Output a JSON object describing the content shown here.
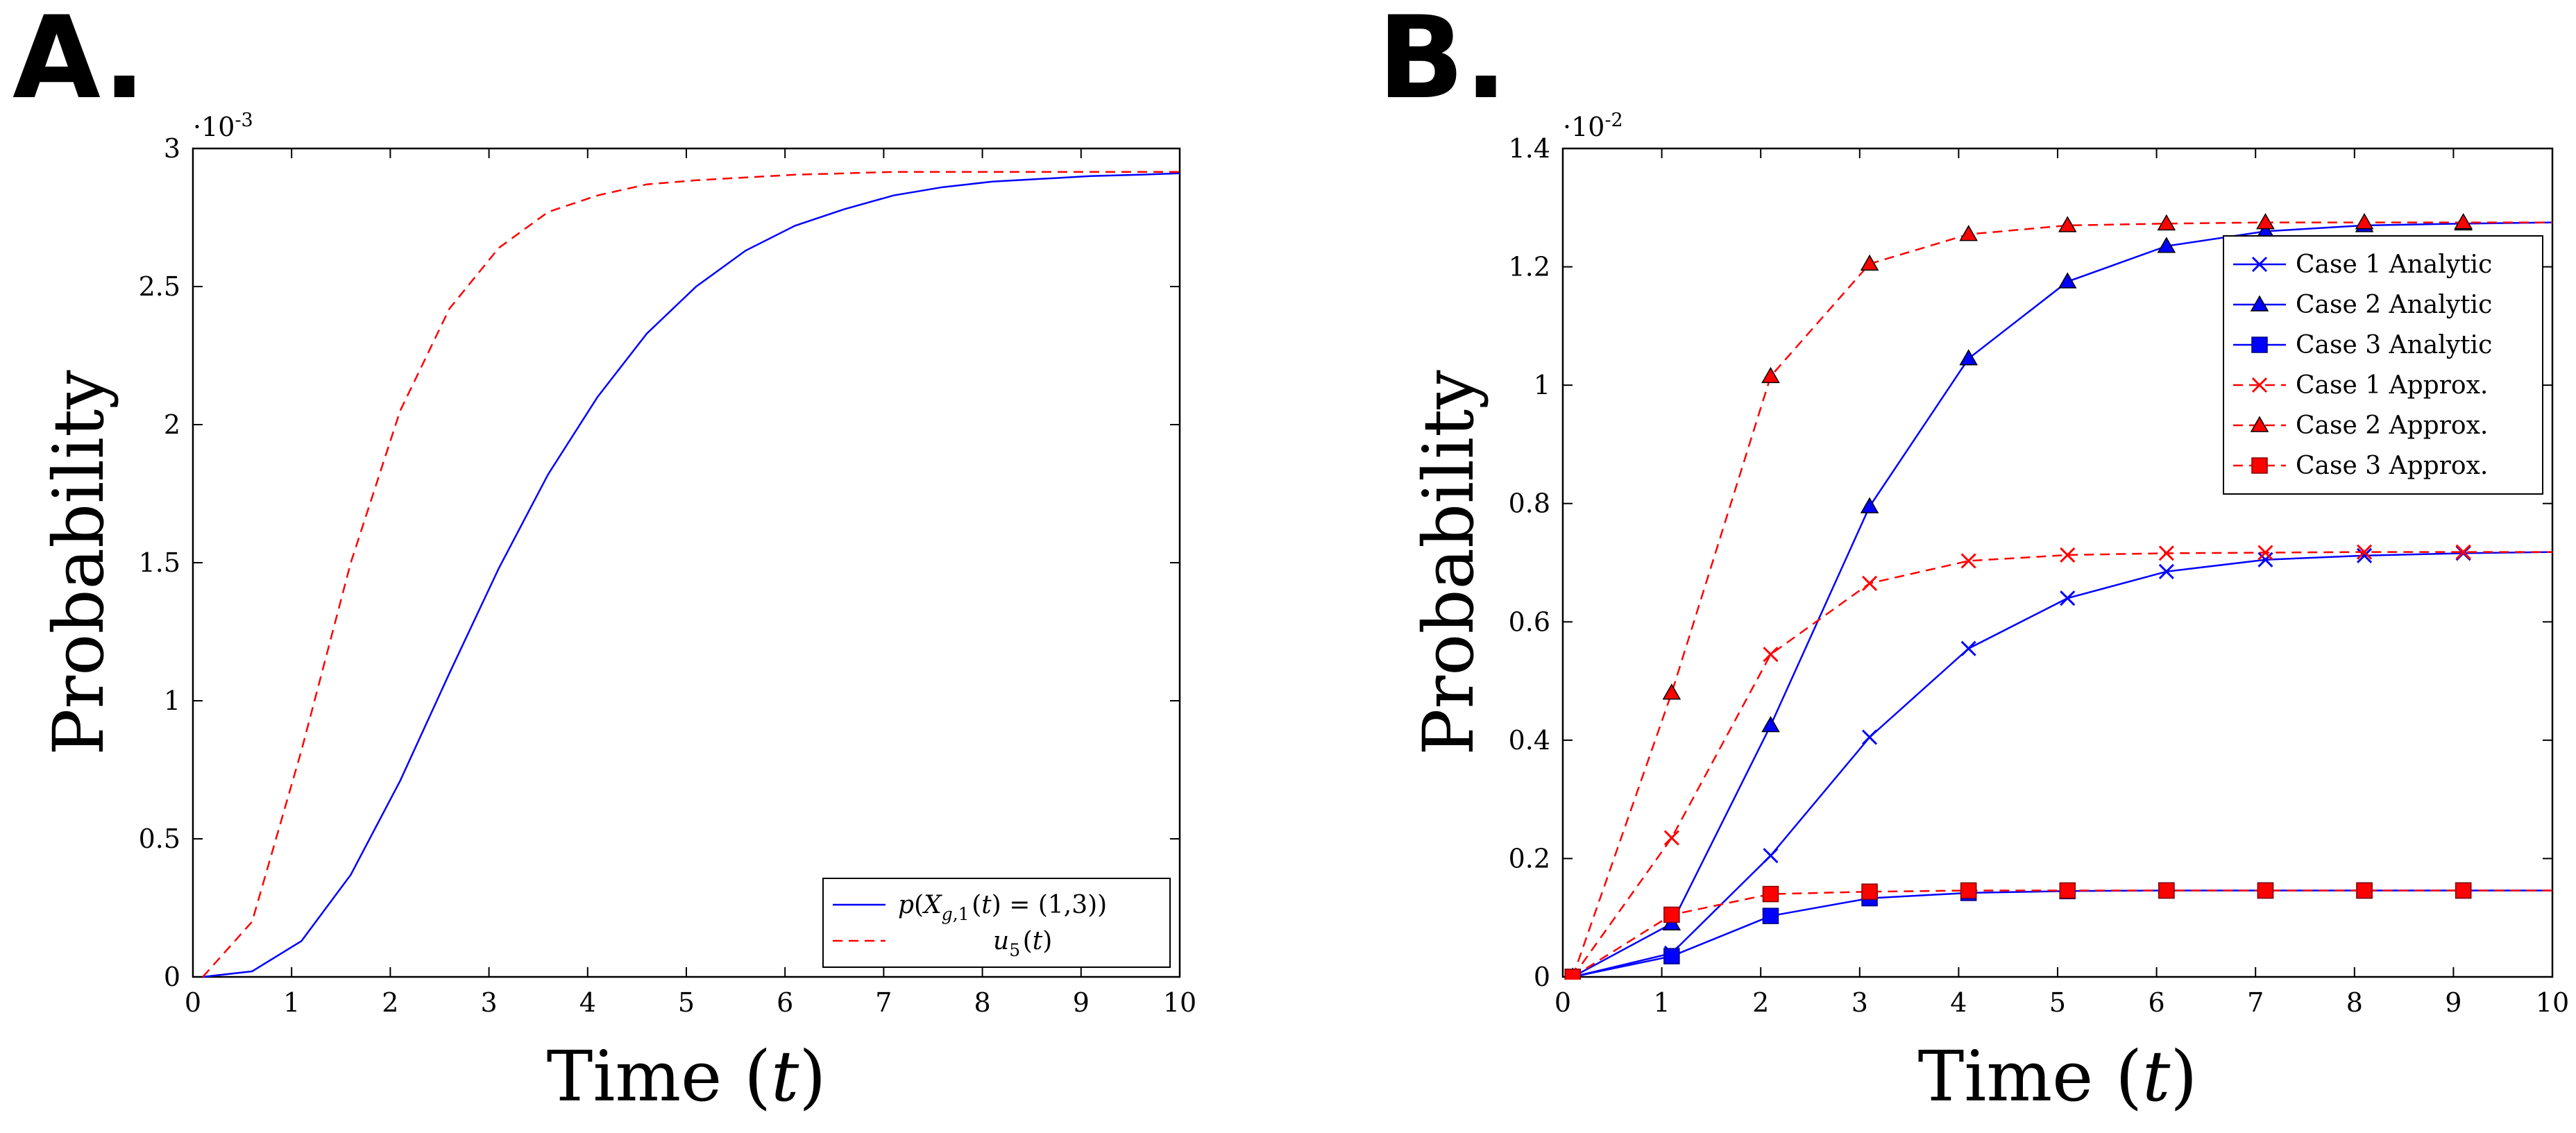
{
  "figure": {
    "panels": [
      "A.",
      "B."
    ]
  },
  "chart_data": [
    {
      "panel": "A.",
      "type": "line",
      "xlabel": "Time (t)",
      "ylabel": "Probability",
      "xlim": [
        0,
        10
      ],
      "ylim": [
        0,
        3
      ],
      "y_multiplier": "·10^-3",
      "xticks": [
        "0",
        "1",
        "2",
        "3",
        "4",
        "5",
        "6",
        "7",
        "8",
        "9",
        "10"
      ],
      "yticks": [
        "0",
        "0.5",
        "1",
        "1.5",
        "2",
        "2.5",
        "3"
      ],
      "legend_position": "bottom-right",
      "series": [
        {
          "name": "p(X_{g,1}(t) = (1,3))",
          "color": "#0000ff",
          "dash": "solid",
          "marker": "none",
          "x": [
            0.1,
            0.6,
            1.1,
            1.6,
            2.1,
            2.6,
            3.1,
            3.6,
            4.1,
            4.6,
            5.1,
            5.6,
            6.1,
            6.6,
            7.1,
            7.6,
            8.1,
            8.6,
            9.1,
            9.6,
            10
          ],
          "y": [
            0,
            0.02,
            0.13,
            0.37,
            0.71,
            1.1,
            1.48,
            1.82,
            2.1,
            2.33,
            2.5,
            2.63,
            2.72,
            2.78,
            2.83,
            2.86,
            2.88,
            2.89,
            2.9,
            2.905,
            2.91
          ]
        },
        {
          "name": "u_5(t)",
          "color": "#ff0000",
          "dash": "dashed",
          "marker": "none",
          "x": [
            0.1,
            0.6,
            1.1,
            1.6,
            2.1,
            2.6,
            3.1,
            3.6,
            4.1,
            4.6,
            5.1,
            5.6,
            6.1,
            6.6,
            7.1,
            7.6,
            8.1,
            8.6,
            9.1,
            9.6,
            10
          ],
          "y": [
            0,
            0.2,
            0.82,
            1.5,
            2.05,
            2.42,
            2.64,
            2.77,
            2.83,
            2.87,
            2.885,
            2.895,
            2.905,
            2.91,
            2.915,
            2.915,
            2.915,
            2.915,
            2.915,
            2.915,
            2.915
          ]
        }
      ]
    },
    {
      "panel": "B.",
      "type": "line",
      "xlabel": "Time (t)",
      "ylabel": "Probability",
      "xlim": [
        0,
        10
      ],
      "ylim": [
        0,
        1.4
      ],
      "y_multiplier": "·10^-2",
      "xticks": [
        "0",
        "1",
        "2",
        "3",
        "4",
        "5",
        "6",
        "7",
        "8",
        "9",
        "10"
      ],
      "yticks": [
        "0",
        "0.2",
        "0.4",
        "0.6",
        "0.8",
        "1",
        "1.2",
        "1.4"
      ],
      "legend_position": "top-right",
      "series": [
        {
          "name": "Case 1 Analytic",
          "color": "#0000ff",
          "dash": "solid",
          "marker": "x",
          "x": [
            0.1,
            1.1,
            2.1,
            3.1,
            4.1,
            5.1,
            6.1,
            7.1,
            8.1,
            9.1,
            10
          ],
          "y": [
            0,
            0.04,
            0.205,
            0.405,
            0.555,
            0.64,
            0.685,
            0.705,
            0.712,
            0.716,
            0.718
          ]
        },
        {
          "name": "Case 2 Analytic",
          "color": "#0000ff",
          "dash": "solid",
          "marker": "triangle",
          "x": [
            0.1,
            1.1,
            2.1,
            3.1,
            4.1,
            5.1,
            6.1,
            7.1,
            8.1,
            9.1,
            10
          ],
          "y": [
            0,
            0.09,
            0.425,
            0.795,
            1.045,
            1.175,
            1.235,
            1.26,
            1.27,
            1.273,
            1.275
          ]
        },
        {
          "name": "Case 3 Analytic",
          "color": "#0000ff",
          "dash": "solid",
          "marker": "square",
          "x": [
            0.1,
            1.1,
            2.1,
            3.1,
            4.1,
            5.1,
            6.1,
            7.1,
            8.1,
            9.1,
            10
          ],
          "y": [
            0,
            0.035,
            0.103,
            0.133,
            0.142,
            0.145,
            0.146,
            0.146,
            0.146,
            0.146,
            0.146
          ]
        },
        {
          "name": "Case 1 Approx.",
          "color": "#ff0000",
          "dash": "dashed",
          "marker": "x",
          "x": [
            0.1,
            1.1,
            2.1,
            3.1,
            4.1,
            5.1,
            6.1,
            7.1,
            8.1,
            9.1,
            10
          ],
          "y": [
            0,
            0.235,
            0.545,
            0.665,
            0.703,
            0.713,
            0.716,
            0.717,
            0.718,
            0.718,
            0.718
          ]
        },
        {
          "name": "Case 2 Approx.",
          "color": "#ff0000",
          "dash": "dashed",
          "marker": "triangle",
          "x": [
            0.1,
            1.1,
            2.1,
            3.1,
            4.1,
            5.1,
            6.1,
            7.1,
            8.1,
            9.1,
            10
          ],
          "y": [
            0,
            0.48,
            1.015,
            1.205,
            1.255,
            1.27,
            1.273,
            1.275,
            1.275,
            1.275,
            1.275
          ]
        },
        {
          "name": "Case 3 Approx.",
          "color": "#ff0000",
          "dash": "dashed",
          "marker": "square",
          "x": [
            0.1,
            1.1,
            2.1,
            3.1,
            4.1,
            5.1,
            6.1,
            7.1,
            8.1,
            9.1,
            10
          ],
          "y": [
            0,
            0.105,
            0.14,
            0.144,
            0.146,
            0.146,
            0.146,
            0.146,
            0.146,
            0.146,
            0.146
          ]
        }
      ]
    }
  ]
}
